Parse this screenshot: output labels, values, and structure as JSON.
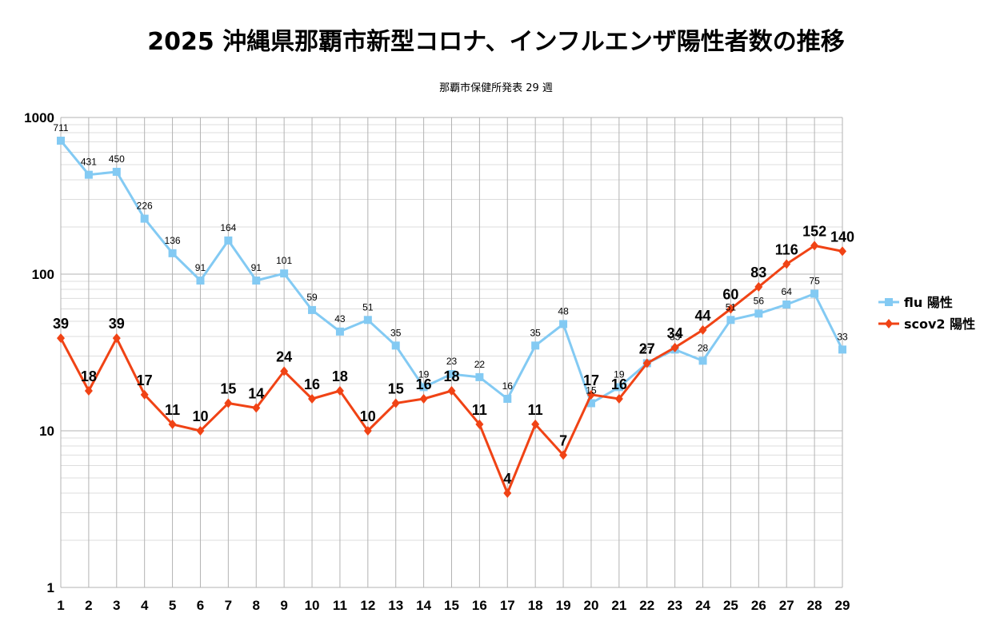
{
  "chart_data": {
    "type": "line",
    "title": "2025 沖縄県那覇市新型コロナ、インフルエンザ陽性者数の推移",
    "subtitle": "那覇市保健所発表 29 週",
    "xlabel": "",
    "ylabel": "",
    "y_scale": "log",
    "ylim": [
      1,
      1000
    ],
    "y_ticks": [
      "1",
      "10",
      "100",
      "1000"
    ],
    "x": [
      1,
      2,
      3,
      4,
      5,
      6,
      7,
      8,
      9,
      10,
      11,
      12,
      13,
      14,
      15,
      16,
      17,
      18,
      19,
      20,
      21,
      22,
      23,
      24,
      25,
      26,
      27,
      28,
      29
    ],
    "grid": true,
    "legend_position": "right",
    "series": [
      {
        "name": "flu 陽性",
        "color": "#83caf3",
        "marker": "square",
        "values": [
          711,
          431,
          450,
          226,
          136,
          91,
          164,
          91,
          101,
          59,
          43,
          51,
          35,
          19,
          23,
          22,
          16,
          35,
          48,
          15,
          19,
          27,
          33,
          28,
          51,
          56,
          64,
          75,
          33
        ]
      },
      {
        "name": "scov2 陽性",
        "color": "#f04315",
        "marker": "diamond",
        "values": [
          39,
          18,
          39,
          17,
          11,
          10,
          15,
          14,
          24,
          16,
          18,
          10,
          15,
          16,
          18,
          11,
          4,
          11,
          7,
          17,
          16,
          27,
          34,
          44,
          60,
          83,
          116,
          152,
          140
        ]
      }
    ]
  }
}
